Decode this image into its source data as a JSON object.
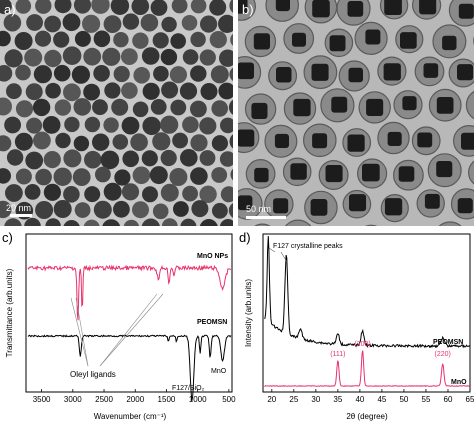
{
  "panels": {
    "a": {
      "label": "a)",
      "scale_bar": "20 nm"
    },
    "b": {
      "label": "b)",
      "scale_bar": "50 nm"
    }
  },
  "chart_data": [
    {
      "panel_label": "c)",
      "type": "line",
      "xlabel": "Wavenumber (cm⁻¹)",
      "ylabel": "Transmittance (arb.units)",
      "x_ticks": [
        "3500",
        "3000",
        "2500",
        "2000",
        "1500",
        "1000",
        "500"
      ],
      "xlim": [
        3750,
        450
      ],
      "x_reversed": true,
      "series": [
        {
          "name": "MnO NPs",
          "color": "#e8336b"
        },
        {
          "name": "PEOMSN",
          "color": "#000000"
        }
      ],
      "annotations": [
        "Oleyl ligands",
        "F127/SiO₂",
        "MnO"
      ]
    },
    {
      "panel_label": "d)",
      "type": "line",
      "xlabel": "2θ (degree)",
      "ylabel": "Intensity (arb.units)",
      "x_ticks": [
        "20",
        "25",
        "30",
        "35",
        "40",
        "45",
        "50",
        "55",
        "60",
        "65"
      ],
      "xlim": [
        18,
        65
      ],
      "series": [
        {
          "name": "PEOMSN",
          "color": "#000000"
        },
        {
          "name": "MnO",
          "color": "#e8336b"
        }
      ],
      "annotations": [
        "F127 crystalline peaks"
      ],
      "peak_labels": [
        {
          "label": "(111)",
          "x": 35
        },
        {
          "label": "(200)",
          "x": 40.6
        },
        {
          "label": "(220)",
          "x": 58.8
        }
      ]
    }
  ],
  "colors": {
    "mno": "#e8336b",
    "peomsn": "#000000"
  }
}
